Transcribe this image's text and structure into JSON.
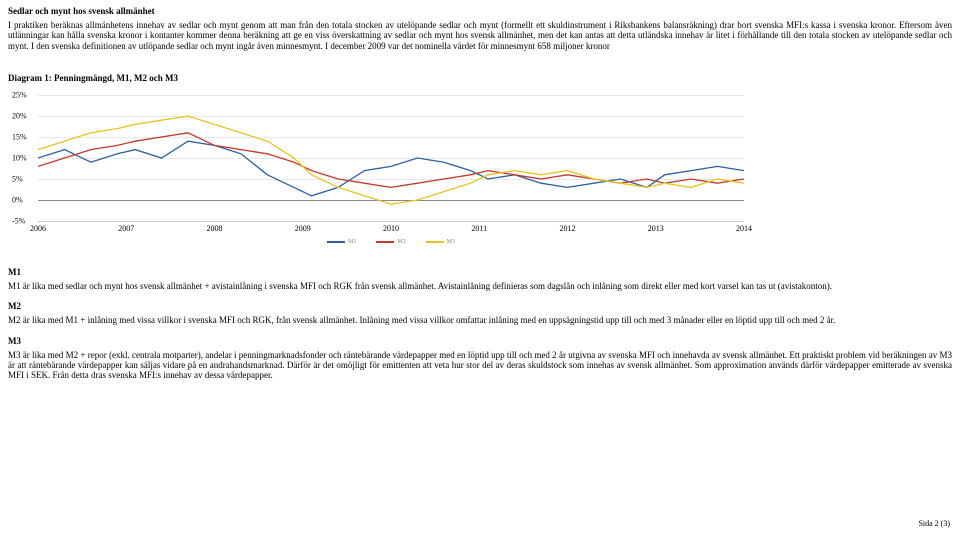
{
  "section_title": "Sedlar och mynt hos svensk allmänhet",
  "intro_para": "I praktiken beräknas allmänhetens innehav av sedlar och mynt genom att man från den totala stocken av utelöpande sedlar och mynt (formellt ett skuldinstrument i Riksbankens balansräkning) drar bort svenska MFI:s kassa i svenska kronor. Eftersom även utlänningar kan hålla svenska kronor i kontanter kommer denna beräkning att ge en viss överskattning av sedlar och mynt hos svensk allmänhet, men det kan antas att detta utländska innehav är litet i förhållande till den totala stocken av utelöpande sedlar och mynt. I den svenska definitionen av utlöpande sedlar och mynt ingår även minnesmynt. I december 2009 var det nominella värdet för minnesmynt 658 miljoner kronor",
  "diagram_title": "Diagram 1: Penningmängd, M1, M2 och M3",
  "chart": {
    "type": "line",
    "ylim": [
      -5,
      25
    ],
    "xlim": [
      2006,
      2014
    ],
    "yticks": [
      "-5%",
      "0%",
      "5%",
      "10%",
      "15%",
      "20%",
      "25%"
    ],
    "xticks": [
      "2006",
      "2007",
      "2008",
      "2009",
      "2010",
      "2011",
      "2012",
      "2013",
      "2014"
    ],
    "grid_color": "#e8e8e8",
    "series": [
      {
        "name": "M1",
        "color": "#2e5f9e",
        "legend": "M1",
        "points": [
          [
            2006,
            10
          ],
          [
            2006.3,
            12
          ],
          [
            2006.6,
            9
          ],
          [
            2006.9,
            11
          ],
          [
            2007.1,
            12
          ],
          [
            2007.4,
            10
          ],
          [
            2007.7,
            14
          ],
          [
            2008,
            13
          ],
          [
            2008.3,
            11
          ],
          [
            2008.6,
            6
          ],
          [
            2008.9,
            3
          ],
          [
            2009.1,
            1
          ],
          [
            2009.4,
            3
          ],
          [
            2009.7,
            7
          ],
          [
            2010,
            8
          ],
          [
            2010.3,
            10
          ],
          [
            2010.6,
            9
          ],
          [
            2010.9,
            7
          ],
          [
            2011.1,
            5
          ],
          [
            2011.4,
            6
          ],
          [
            2011.7,
            4
          ],
          [
            2012,
            3
          ],
          [
            2012.3,
            4
          ],
          [
            2012.6,
            5
          ],
          [
            2012.9,
            3
          ],
          [
            2013.1,
            6
          ],
          [
            2013.4,
            7
          ],
          [
            2013.7,
            8
          ],
          [
            2014,
            7
          ]
        ]
      },
      {
        "name": "M2",
        "color": "#c0392b",
        "legend": "M2",
        "points": [
          [
            2006,
            8
          ],
          [
            2006.3,
            10
          ],
          [
            2006.6,
            12
          ],
          [
            2006.9,
            13
          ],
          [
            2007.1,
            14
          ],
          [
            2007.4,
            15
          ],
          [
            2007.7,
            16
          ],
          [
            2008,
            13
          ],
          [
            2008.3,
            12
          ],
          [
            2008.6,
            11
          ],
          [
            2008.9,
            9
          ],
          [
            2009.1,
            7
          ],
          [
            2009.4,
            5
          ],
          [
            2009.7,
            4
          ],
          [
            2010,
            3
          ],
          [
            2010.3,
            4
          ],
          [
            2010.6,
            5
          ],
          [
            2010.9,
            6
          ],
          [
            2011.1,
            7
          ],
          [
            2011.4,
            6
          ],
          [
            2011.7,
            5
          ],
          [
            2012,
            6
          ],
          [
            2012.3,
            5
          ],
          [
            2012.6,
            4
          ],
          [
            2012.9,
            5
          ],
          [
            2013.1,
            4
          ],
          [
            2013.4,
            5
          ],
          [
            2013.7,
            4
          ],
          [
            2014,
            5
          ]
        ]
      },
      {
        "name": "M3",
        "color": "#e6c322",
        "legend": "M3",
        "points": [
          [
            2006,
            12
          ],
          [
            2006.3,
            14
          ],
          [
            2006.6,
            16
          ],
          [
            2006.9,
            17
          ],
          [
            2007.1,
            18
          ],
          [
            2007.4,
            19
          ],
          [
            2007.7,
            20
          ],
          [
            2008,
            18
          ],
          [
            2008.3,
            16
          ],
          [
            2008.6,
            14
          ],
          [
            2008.9,
            10
          ],
          [
            2009.1,
            6
          ],
          [
            2009.4,
            3
          ],
          [
            2009.7,
            1
          ],
          [
            2010,
            -1
          ],
          [
            2010.3,
            0
          ],
          [
            2010.6,
            2
          ],
          [
            2010.9,
            4
          ],
          [
            2011.1,
            6
          ],
          [
            2011.4,
            7
          ],
          [
            2011.7,
            6
          ],
          [
            2012,
            7
          ],
          [
            2012.3,
            5
          ],
          [
            2012.6,
            4
          ],
          [
            2012.9,
            3
          ],
          [
            2013.1,
            4
          ],
          [
            2013.4,
            3
          ],
          [
            2013.7,
            5
          ],
          [
            2014,
            4
          ]
        ]
      }
    ]
  },
  "m1_head": "M1",
  "m1_text": "M1 är lika med sedlar och mynt hos svensk allmänhet + avistainlåning i svenska MFI och RGK från svensk allmänhet. Avistainlåning definieras som dagslån och inlåning som direkt eller med kort varsel kan tas ut (avistakonton).",
  "m2_head": "M2",
  "m2_text": "M2 är lika med M1 + inlåning med vissa villkor i svenska MFI och RGK, från svensk allmänhet. Inlåning med vissa villkor omfattar inlåning med en uppsägningstid upp till och med 3 månader eller en löptid upp till och med 2 år.",
  "m3_head": "M3",
  "m3_text": "M3 är lika med M2 + repor (exkl. centrala motparter), andelar i penningmarknadsfonder och räntebärande värdepapper med en löptid upp till och med 2 år utgivna av svenska MFI och innehavda av svensk allmänhet. Ett praktiskt problem vid beräkningen av M3 är att räntebärande värdepapper kan säljas vidare på en andrahandsmarknad. Därför är det omöjligt för emittenten att veta hur stor del av deras skuldstock som innehas av svensk allmänhet. Som approximation används därför värdepapper emitterade av svenska MFI i SEK. Från detta dras svenska MFI:s innehav av dessa värdepapper.",
  "footer": "Sida 2 (3)"
}
